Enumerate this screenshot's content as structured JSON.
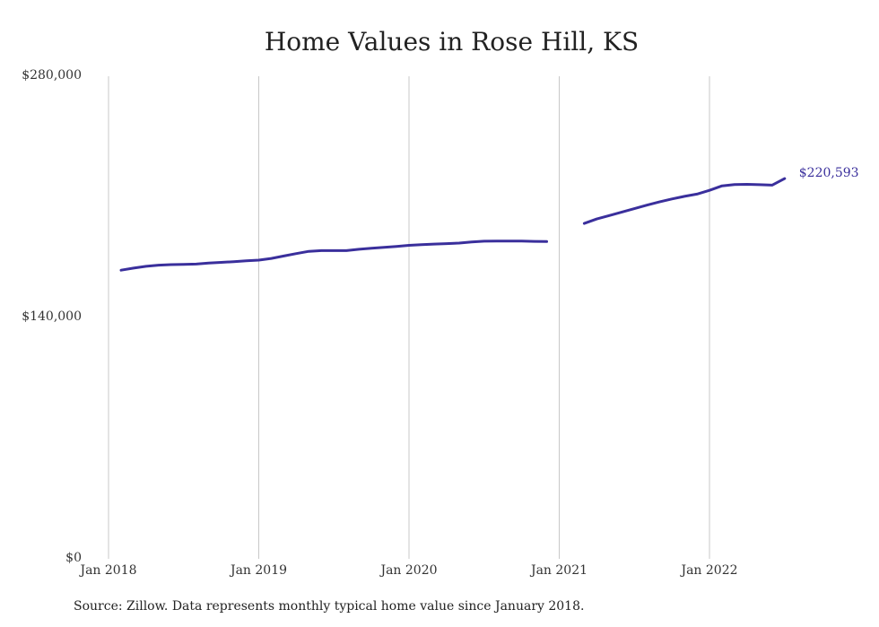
{
  "chart_data": {
    "type": "line",
    "title": "Home Values in Rose Hill, KS",
    "xlabel": "",
    "ylabel": "",
    "ylim": [
      0,
      280000
    ],
    "y_ticks": [
      "$280,000",
      "$140,000",
      "$0"
    ],
    "y_tick_values": [
      280000,
      140000,
      0
    ],
    "x_ticks": [
      "Jan 2018",
      "Jan 2019",
      "Jan 2020",
      "Jan 2021",
      "Jan 2022"
    ],
    "x_tick_values": [
      "2018-01",
      "2019-01",
      "2020-01",
      "2021-01",
      "2022-01"
    ],
    "grid": "vertical",
    "line_color": "#3a2f9c",
    "series": [
      {
        "x": [
          "2018-02",
          "2018-03",
          "2018-04",
          "2018-05",
          "2018-06",
          "2018-07",
          "2018-08",
          "2018-09",
          "2018-10",
          "2018-11",
          "2018-12",
          "2019-01",
          "2019-02",
          "2019-03",
          "2019-04",
          "2019-05",
          "2019-06",
          "2019-07",
          "2019-08",
          "2019-09",
          "2019-10",
          "2019-11",
          "2019-12",
          "2020-01",
          "2020-02",
          "2020-03",
          "2020-04",
          "2020-05",
          "2020-06",
          "2020-07",
          "2020-08",
          "2020-09",
          "2020-10",
          "2020-11",
          "2020-12",
          "2021-03",
          "2021-04",
          "2021-05",
          "2021-06",
          "2021-07",
          "2021-08",
          "2021-09",
          "2021-10",
          "2021-11",
          "2021-12",
          "2022-01",
          "2022-02",
          "2022-03",
          "2022-04",
          "2022-05",
          "2022-06",
          "2022-07"
        ],
        "values": [
          167500,
          168700,
          169700,
          170400,
          170700,
          170800,
          171000,
          171600,
          172000,
          172400,
          172900,
          173300,
          174300,
          175700,
          177100,
          178400,
          178800,
          178800,
          178800,
          179600,
          180200,
          180700,
          181200,
          181900,
          182300,
          182600,
          182900,
          183200,
          183800,
          184300,
          184400,
          184400,
          184400,
          184200,
          184100,
          194600,
          197200,
          199200,
          201200,
          203200,
          205200,
          207100,
          208800,
          210300,
          211600,
          213800,
          216400,
          217200,
          217300,
          217100,
          216800,
          220593
        ]
      }
    ],
    "end_label": "$220,593",
    "source": "Source: Zillow. Data represents monthly typical home value since January 2018."
  }
}
